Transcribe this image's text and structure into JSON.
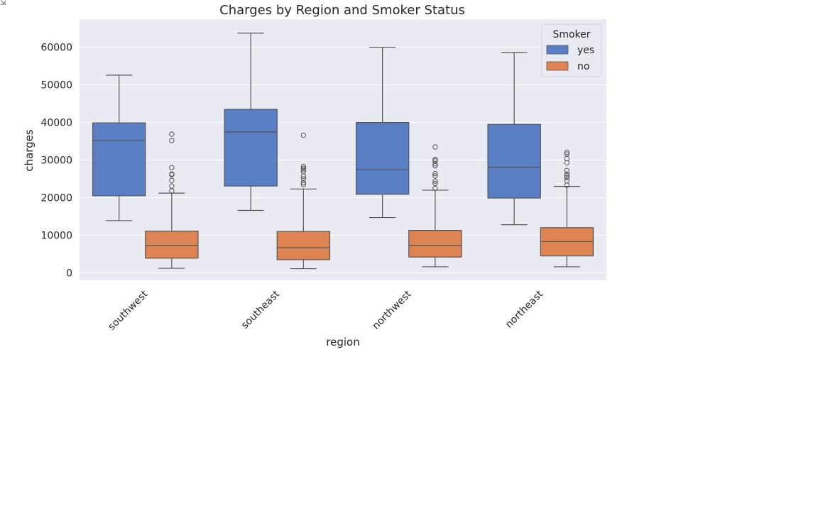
{
  "corner_icon": "output-toggle-icon",
  "chart_data": {
    "type": "boxplot",
    "title": "Charges by Region and Smoker Status",
    "xlabel": "region",
    "ylabel": "charges",
    "ylim": [
      -2000,
      67500
    ],
    "yticks": [
      0,
      10000,
      20000,
      30000,
      40000,
      50000,
      60000
    ],
    "ytick_labels": [
      "0",
      "10000",
      "20000",
      "30000",
      "40000",
      "50000",
      "60000"
    ],
    "categories": [
      "southwest",
      "southeast",
      "northwest",
      "northeast"
    ],
    "grid": true,
    "background_color": "#eaeaf2",
    "legend": {
      "title": "Smoker",
      "placement": "top-right"
    },
    "series": [
      {
        "name": "yes",
        "color": "#5b7fc4",
        "boxes": [
          {
            "min": 13900,
            "q1": 20500,
            "median": 35200,
            "q3": 39900,
            "max": 52600,
            "outliers": []
          },
          {
            "min": 16600,
            "q1": 23100,
            "median": 37500,
            "q3": 43500,
            "max": 63800,
            "outliers": []
          },
          {
            "min": 14700,
            "q1": 20900,
            "median": 27400,
            "q3": 40000,
            "max": 60000,
            "outliers": []
          },
          {
            "min": 12800,
            "q1": 19900,
            "median": 28100,
            "q3": 39500,
            "max": 58600,
            "outliers": []
          }
        ]
      },
      {
        "name": "no",
        "color": "#dd8452",
        "boxes": [
          {
            "min": 1200,
            "q1": 3900,
            "median": 7300,
            "q3": 11100,
            "max": 21200,
            "outliers": [
              21800,
              23100,
              24600,
              26100,
              26300,
              28000,
              35200,
              36900
            ]
          },
          {
            "min": 1100,
            "q1": 3500,
            "median": 6700,
            "q3": 11000,
            "max": 22300,
            "outliers": [
              23500,
              24000,
              25000,
              25700,
              26900,
              27400,
              27800,
              28300,
              36600
            ]
          },
          {
            "min": 1600,
            "q1": 4200,
            "median": 7300,
            "q3": 11300,
            "max": 22000,
            "outliers": [
              22500,
              23800,
              24400,
              25800,
              26400,
              28500,
              29000,
              29800,
              30200,
              33500
            ]
          },
          {
            "min": 1600,
            "q1": 4500,
            "median": 8300,
            "q3": 12000,
            "max": 23000,
            "outliers": [
              23300,
              24500,
              25300,
              25800,
              26300,
              27200,
              29300,
              30400,
              31600,
              32100
            ]
          }
        ]
      }
    ]
  }
}
